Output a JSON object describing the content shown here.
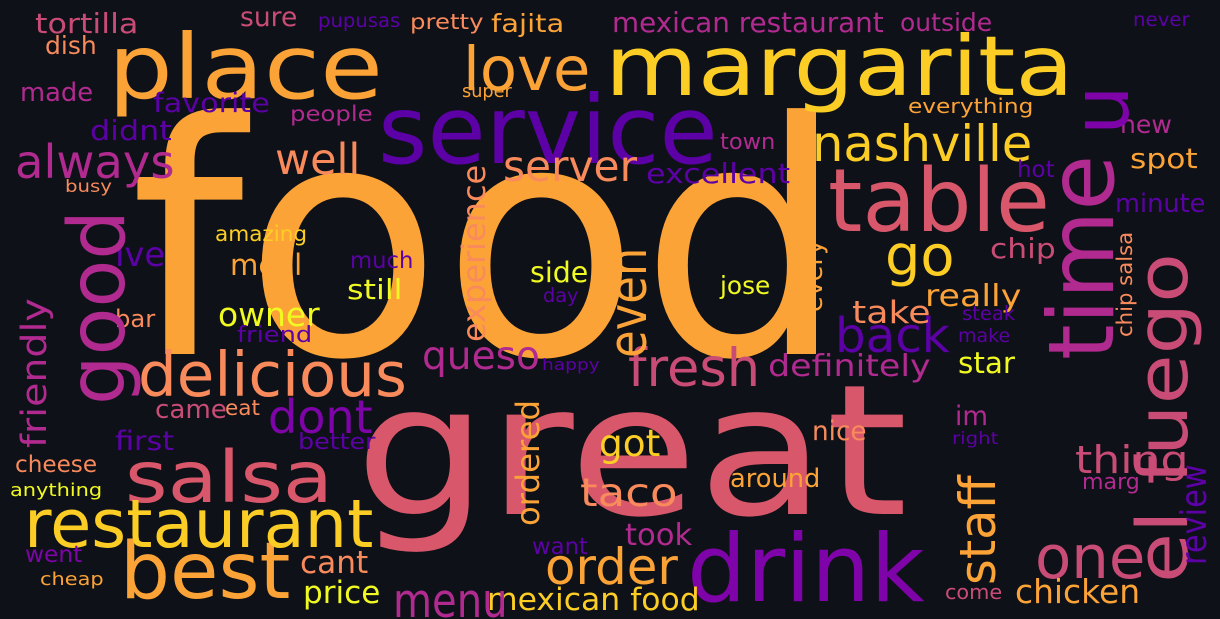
{
  "palette": {
    "background": "#0e1117",
    "orange": "#fca337",
    "yellow": "#fcce25",
    "pale_yellow": "#f0f921",
    "peach": "#f88a5c",
    "rose": "#d8576b",
    "deep_rose": "#c94c76",
    "magenta": "#b12a90",
    "purple": "#7e03a8",
    "indigo": "#5c01a6",
    "deep_indigo": "#4f02a2"
  },
  "words": [
    {
      "text": "food",
      "color": "orange"
    },
    {
      "text": "great",
      "color": "rose"
    },
    {
      "text": "margarita",
      "color": "yellow"
    },
    {
      "text": "place",
      "color": "orange"
    },
    {
      "text": "service",
      "color": "indigo"
    },
    {
      "text": "drink",
      "color": "purple"
    },
    {
      "text": "table",
      "color": "rose"
    },
    {
      "text": "salsa",
      "color": "rose"
    },
    {
      "text": "good",
      "color": "magenta"
    },
    {
      "text": "el fuego",
      "color": "deep_rose"
    },
    {
      "text": "time",
      "color": "magenta"
    },
    {
      "text": "best",
      "color": "orange"
    },
    {
      "text": "restaurant",
      "color": "yellow"
    },
    {
      "text": "u",
      "color": "purple"
    },
    {
      "text": "nashville",
      "color": "yellow"
    },
    {
      "text": "love",
      "color": "orange"
    },
    {
      "text": "always",
      "color": "magenta"
    },
    {
      "text": "delicious",
      "color": "peach"
    },
    {
      "text": "order",
      "color": "orange"
    },
    {
      "text": "one",
      "color": "deep_rose"
    },
    {
      "text": "fresh",
      "color": "deep_rose"
    },
    {
      "text": "back",
      "color": "indigo"
    },
    {
      "text": "go",
      "color": "yellow"
    },
    {
      "text": "taco",
      "color": "peach"
    },
    {
      "text": "queso",
      "color": "magenta"
    },
    {
      "text": "well",
      "color": "peach"
    },
    {
      "text": "server",
      "color": "peach"
    },
    {
      "text": "thing",
      "color": "deep_rose"
    },
    {
      "text": "dont",
      "color": "purple"
    },
    {
      "text": "staff",
      "color": "orange"
    },
    {
      "text": "friendly",
      "color": "magenta"
    },
    {
      "text": "got",
      "color": "yellow"
    },
    {
      "text": "experience",
      "color": "peach"
    },
    {
      "text": "definitely",
      "color": "magenta"
    },
    {
      "text": "really",
      "color": "orange"
    },
    {
      "text": "chicken",
      "color": "orange"
    },
    {
      "text": "mexican food",
      "color": "yellow"
    },
    {
      "text": "fajita",
      "color": "orange"
    },
    {
      "text": "mexican restaurant",
      "color": "magenta"
    },
    {
      "text": "chip",
      "color": "deep_rose"
    },
    {
      "text": "owner",
      "color": "pale_yellow"
    },
    {
      "text": "spot",
      "color": "orange"
    },
    {
      "text": "take",
      "color": "peach"
    },
    {
      "text": "meal",
      "color": "orange"
    },
    {
      "text": "new",
      "color": "magenta"
    },
    {
      "text": "even",
      "color": "orange"
    },
    {
      "text": "ordered",
      "color": "orange"
    },
    {
      "text": "cant",
      "color": "peach"
    },
    {
      "text": "menu",
      "color": "magenta"
    },
    {
      "text": "price",
      "color": "pale_yellow"
    },
    {
      "text": "im",
      "color": "magenta"
    },
    {
      "text": "around",
      "color": "orange"
    },
    {
      "text": "took",
      "color": "magenta"
    },
    {
      "text": "ive",
      "color": "indigo"
    },
    {
      "text": "everything",
      "color": "orange"
    },
    {
      "text": "side",
      "color": "pale_yellow"
    },
    {
      "text": "still",
      "color": "pale_yellow"
    },
    {
      "text": "much",
      "color": "indigo"
    },
    {
      "text": "made",
      "color": "magenta"
    },
    {
      "text": "came",
      "color": "deep_rose"
    },
    {
      "text": "first",
      "color": "indigo"
    },
    {
      "text": "marg",
      "color": "magenta"
    },
    {
      "text": "people",
      "color": "magenta"
    },
    {
      "text": "didnt",
      "color": "indigo"
    },
    {
      "text": "favorite",
      "color": "indigo"
    },
    {
      "text": "town",
      "color": "magenta"
    },
    {
      "text": "excellent",
      "color": "indigo"
    },
    {
      "text": "amazing",
      "color": "yellow"
    },
    {
      "text": "busy",
      "color": "peach"
    },
    {
      "text": "minute",
      "color": "indigo"
    },
    {
      "text": "star",
      "color": "pale_yellow"
    },
    {
      "text": "nice",
      "color": "peach"
    },
    {
      "text": "every",
      "color": "orange"
    },
    {
      "text": "chip salsa",
      "color": "peach"
    },
    {
      "text": "bar",
      "color": "peach"
    },
    {
      "text": "cheese",
      "color": "peach"
    },
    {
      "text": "anything",
      "color": "pale_yellow"
    },
    {
      "text": "went",
      "color": "purple"
    },
    {
      "text": "cheap",
      "color": "orange"
    },
    {
      "text": "want",
      "color": "indigo"
    },
    {
      "text": "come",
      "color": "deep_rose"
    },
    {
      "text": "tortilla",
      "color": "deep_rose"
    },
    {
      "text": "dish",
      "color": "peach"
    },
    {
      "text": "sure",
      "color": "deep_rose"
    },
    {
      "text": "pupusas",
      "color": "indigo"
    },
    {
      "text": "pretty",
      "color": "peach"
    },
    {
      "text": "outside",
      "color": "magenta"
    },
    {
      "text": "never",
      "color": "indigo"
    },
    {
      "text": "super",
      "color": "orange"
    },
    {
      "text": "hot",
      "color": "indigo"
    },
    {
      "text": "jose",
      "color": "pale_yellow"
    },
    {
      "text": "day",
      "color": "indigo"
    },
    {
      "text": "friend",
      "color": "indigo"
    },
    {
      "text": "steak",
      "color": "indigo"
    },
    {
      "text": "make",
      "color": "indigo"
    },
    {
      "text": "happy",
      "color": "indigo"
    },
    {
      "text": "eat",
      "color": "peach"
    },
    {
      "text": "better",
      "color": "indigo"
    },
    {
      "text": "right",
      "color": "indigo"
    },
    {
      "text": "review",
      "color": "indigo"
    }
  ]
}
